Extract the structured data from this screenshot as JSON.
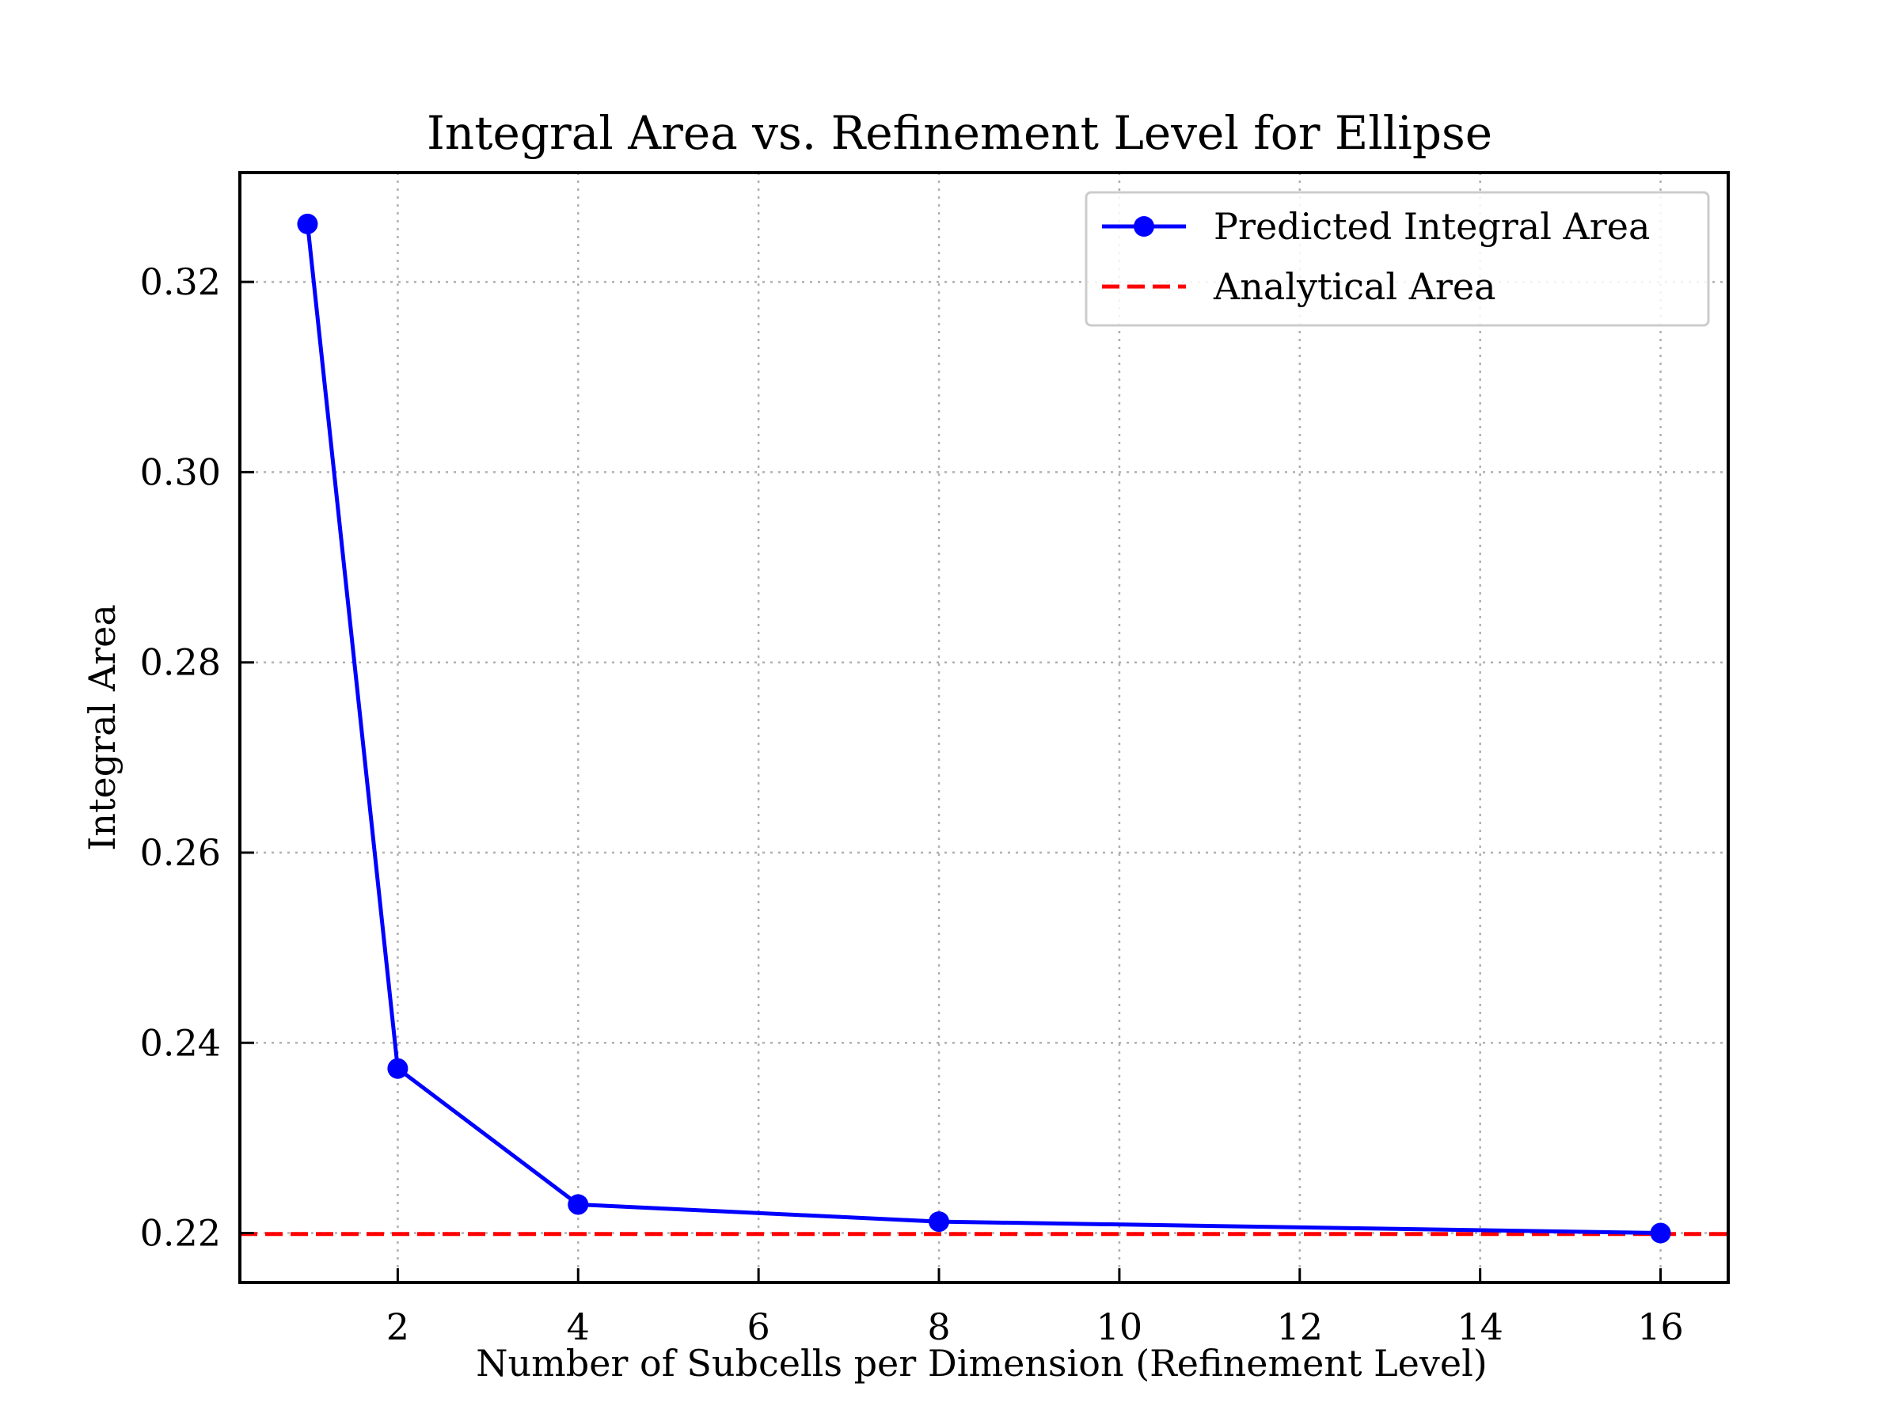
{
  "chart_data": {
    "type": "line",
    "title": "Integral Area vs. Refinement Level for Ellipse",
    "xlabel": "Number of Subcells per Dimension (Refinement Level)",
    "ylabel": "Integral Area",
    "xlim": [
      0.25,
      16.75
    ],
    "ylim": [
      0.2148,
      0.3315
    ],
    "xticks": [
      2,
      4,
      6,
      8,
      10,
      12,
      14,
      16
    ],
    "xtick_labels": [
      "2",
      "4",
      "6",
      "8",
      "10",
      "12",
      "14",
      "16"
    ],
    "yticks": [
      0.22,
      0.24,
      0.26,
      0.28,
      0.3,
      0.32
    ],
    "ytick_labels": [
      "0.22",
      "0.24",
      "0.26",
      "0.28",
      "0.30",
      "0.32"
    ],
    "grid": true,
    "legend_position": "top-right",
    "series": [
      {
        "name": "Predicted Integral Area",
        "style": "solid-line-with-circle-markers",
        "color": "#0000ff",
        "x": [
          1,
          2,
          4,
          8,
          16
        ],
        "y": [
          0.3261,
          0.2373,
          0.223,
          0.2212,
          0.22
        ]
      },
      {
        "name": "Analytical Area",
        "style": "dashed-horizontal-line",
        "color": "#ff0000",
        "y": 0.2199
      }
    ]
  }
}
